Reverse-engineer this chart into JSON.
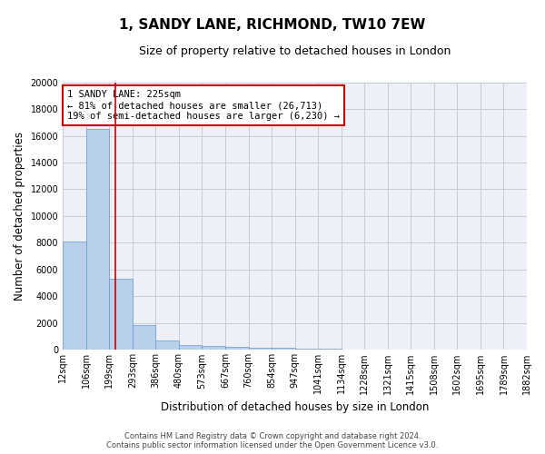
{
  "title": "1, SANDY LANE, RICHMOND, TW10 7EW",
  "subtitle": "Size of property relative to detached houses in London",
  "xlabel": "Distribution of detached houses by size in London",
  "ylabel": "Number of detached properties",
  "bar_values": [
    8100,
    16500,
    5300,
    1850,
    700,
    380,
    280,
    200,
    180,
    150,
    100,
    80,
    60,
    50,
    40,
    30,
    25,
    20,
    15,
    10
  ],
  "bar_left_edges": [
    "12sqm",
    "106sqm",
    "199sqm",
    "293sqm",
    "386sqm",
    "480sqm",
    "573sqm",
    "667sqm",
    "760sqm",
    "854sqm",
    "947sqm",
    "1041sqm",
    "1134sqm",
    "1228sqm",
    "1321sqm",
    "1415sqm",
    "1508sqm",
    "1602sqm",
    "1695sqm",
    "1789sqm",
    "1882sqm"
  ],
  "bar_color": "#b8d0ea",
  "bar_edge_color": "#6699cc",
  "vline_position": 2.26,
  "vline_color": "#cc0000",
  "annotation_text": "1 SANDY LANE: 225sqm\n← 81% of detached houses are smaller (26,713)\n19% of semi-detached houses are larger (6,230) →",
  "annotation_box_color": "#ffffff",
  "annotation_box_edge": "#cc0000",
  "ylim": [
    0,
    20000
  ],
  "yticks": [
    0,
    2000,
    4000,
    6000,
    8000,
    10000,
    12000,
    14000,
    16000,
    18000,
    20000
  ],
  "grid_color": "#c8c8d8",
  "background_color": "#eef0f8",
  "footer_text": "Contains HM Land Registry data © Crown copyright and database right 2024.\nContains public sector information licensed under the Open Government Licence v3.0.",
  "title_fontsize": 11,
  "subtitle_fontsize": 9,
  "axis_label_fontsize": 8.5,
  "tick_fontsize": 7,
  "annotation_fontsize": 7.5,
  "footer_fontsize": 6
}
